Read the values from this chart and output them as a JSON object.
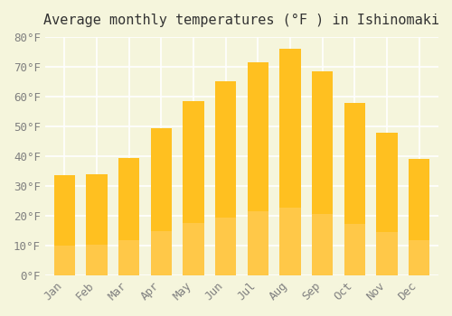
{
  "title": "Average monthly temperatures (°F ) in Ishinomaki",
  "months": [
    "Jan",
    "Feb",
    "Mar",
    "Apr",
    "May",
    "Jun",
    "Jul",
    "Aug",
    "Sep",
    "Oct",
    "Nov",
    "Dec"
  ],
  "values": [
    33.5,
    34.0,
    39.5,
    49.5,
    58.5,
    65.0,
    71.5,
    76.0,
    68.5,
    58.0,
    48.0,
    39.0
  ],
  "bar_color_top": "#FFC020",
  "bar_color_bottom": "#FFD070",
  "ylim": [
    0,
    80
  ],
  "ytick_step": 10,
  "background_color": "#F5F5DC",
  "grid_color": "#FFFFFF",
  "title_fontsize": 11,
  "tick_fontsize": 9
}
